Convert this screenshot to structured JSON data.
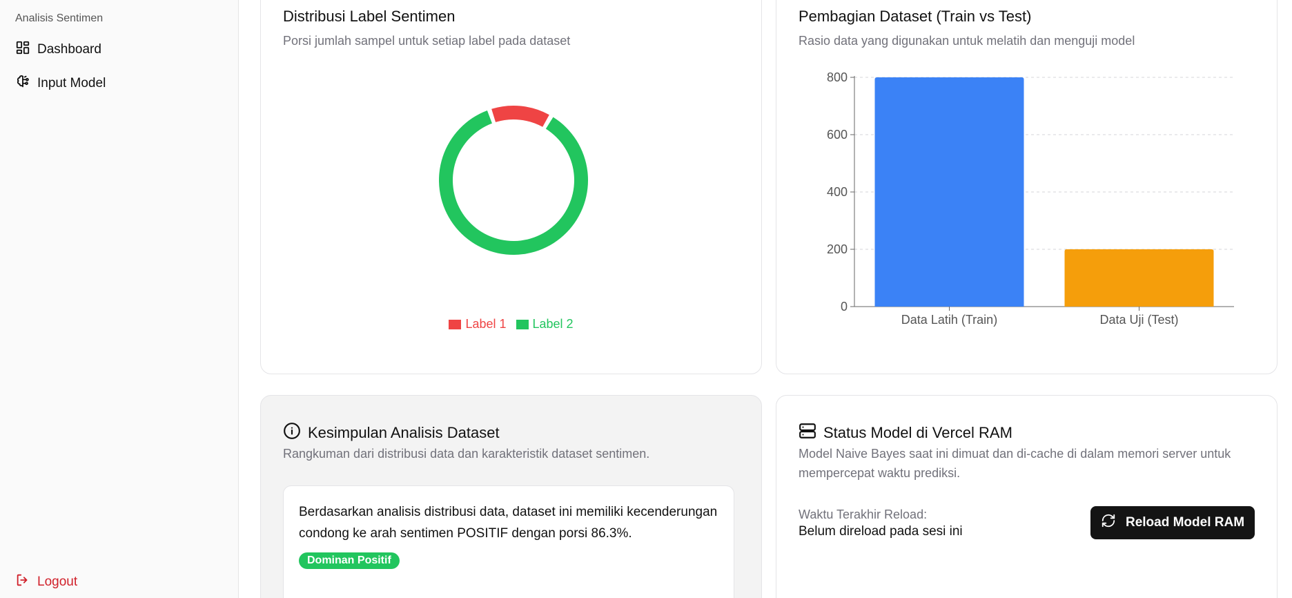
{
  "sidebar": {
    "brand": "Analisis Sentimen",
    "items": [
      {
        "label": "Dashboard",
        "icon": "dashboard-icon"
      },
      {
        "label": "Input Model",
        "icon": "brain-icon"
      }
    ],
    "logout": "Logout"
  },
  "donut_card": {
    "title": "Distribusi Label Sentimen",
    "subtitle": "Porsi jumlah sampel untuk setiap label pada dataset"
  },
  "bar_card": {
    "title": "Pembagian Dataset (Train vs Test)",
    "subtitle": "Rasio data yang digunakan untuk melatih dan menguji model"
  },
  "summary_card": {
    "title": "Kesimpulan Analisis Dataset",
    "subtitle": "Rangkuman dari distribusi data dan karakteristik dataset sentimen.",
    "text": "Berdasarkan analisis distribusi data, dataset ini memiliki kecenderungan condong ke arah sentimen POSITIF dengan porsi 86.3%.",
    "badge": "Dominan Positif"
  },
  "status_card": {
    "title": "Status Model di Vercel RAM",
    "subtitle": "Model Naive Bayes saat ini dimuat dan di-cache di dalam memori server untuk mempercepat waktu prediksi.",
    "reload_label": "Waktu Terakhir Reload:",
    "reload_value": "Belum direload pada sesi ini",
    "button": "Reload Model RAM"
  },
  "colors": {
    "label1": "#ef4444",
    "label2": "#22c55e",
    "train": "#3b82f6",
    "test": "#f59e0b"
  },
  "chart_data": [
    {
      "type": "pie",
      "categories": [
        "Label 1",
        "Label 2"
      ],
      "values": [
        13.7,
        86.3
      ],
      "title": "",
      "legend": "bottom"
    },
    {
      "type": "bar",
      "categories": [
        "Data Latih (Train)",
        "Data Uji (Test)"
      ],
      "values": [
        800,
        200
      ],
      "title": "",
      "xlabel": "",
      "ylabel": "",
      "ylim": [
        0,
        800
      ],
      "yticks": [
        0,
        200,
        400,
        600,
        800
      ],
      "grid": true
    }
  ]
}
